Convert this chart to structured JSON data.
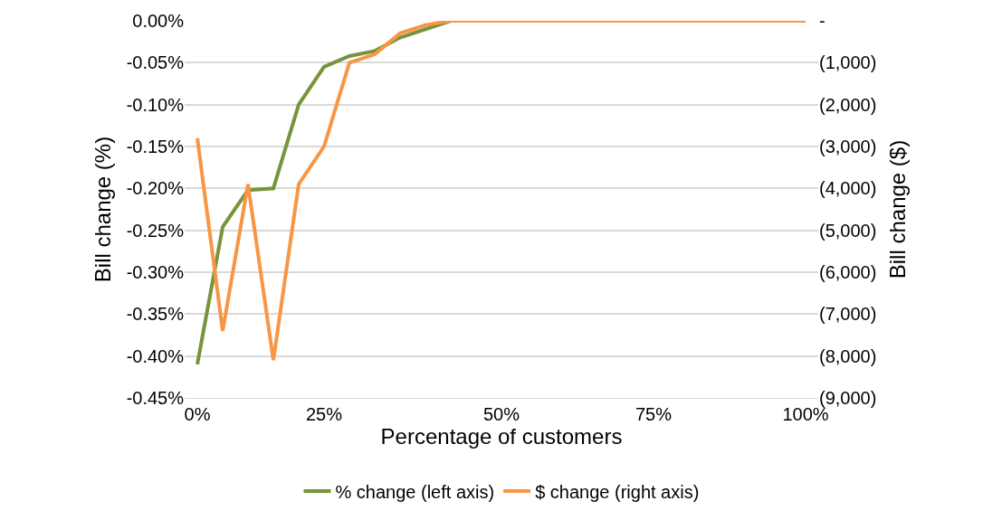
{
  "chart_data": {
    "type": "line",
    "xlabel": "Percentage of customers",
    "ylabel": "Bill change (%)",
    "y2label": "Bill change ($)",
    "categories": [
      "0%",
      null,
      null,
      null,
      null,
      "25%",
      null,
      null,
      null,
      null,
      null,
      null,
      "50%",
      null,
      null,
      null,
      null,
      null,
      "75%",
      null,
      null,
      null,
      null,
      null,
      "100%"
    ],
    "series": [
      {
        "name": "% change (left axis)",
        "color": "#77933c",
        "values": [
          -0.41,
          -0.246,
          -0.202,
          -0.2,
          -0.1,
          -0.055,
          -0.042,
          -0.036,
          -0.02,
          -0.01,
          0,
          null,
          null,
          null,
          null,
          null,
          null,
          null,
          null,
          null,
          null,
          null,
          null,
          null,
          null
        ]
      },
      {
        "name": "$ change (right axis)",
        "color": "#f79646",
        "axis": "y2",
        "values": [
          -2800,
          -7400,
          -3900,
          -8100,
          -3900,
          -3000,
          -1000,
          -800,
          -300,
          -100,
          0,
          0,
          0,
          0,
          0,
          0,
          0,
          0,
          0,
          0,
          0,
          0,
          0,
          0,
          0
        ]
      }
    ],
    "ylim": [
      -0.45,
      0
    ],
    "yticks": [
      {
        "value": 0,
        "label": "0.00%"
      },
      {
        "value": -0.05,
        "label": "-0.05%"
      },
      {
        "value": -0.1,
        "label": "-0.10%"
      },
      {
        "value": -0.15,
        "label": "-0.15%"
      },
      {
        "value": -0.2,
        "label": "-0.20%"
      },
      {
        "value": -0.25,
        "label": "-0.25%"
      },
      {
        "value": -0.3,
        "label": "-0.30%"
      },
      {
        "value": -0.35,
        "label": "-0.35%"
      },
      {
        "value": -0.4,
        "label": "-0.40%"
      },
      {
        "value": -0.45,
        "label": "-0.45%"
      }
    ],
    "y2lim": [
      -9000,
      0
    ],
    "y2ticks": [
      {
        "value": 0,
        "label": "-"
      },
      {
        "value": -1000,
        "label": "(1,000)"
      },
      {
        "value": -2000,
        "label": "(2,000)"
      },
      {
        "value": -3000,
        "label": "(3,000)"
      },
      {
        "value": -4000,
        "label": "(4,000)"
      },
      {
        "value": -5000,
        "label": "(5,000)"
      },
      {
        "value": -6000,
        "label": "(6,000)"
      },
      {
        "value": -7000,
        "label": "(7,000)"
      },
      {
        "value": -8000,
        "label": "(8,000)"
      },
      {
        "value": -9000,
        "label": "(9,000)"
      }
    ],
    "grid": "y",
    "legend": "bottom",
    "marker": "none",
    "line_style": "solid"
  }
}
